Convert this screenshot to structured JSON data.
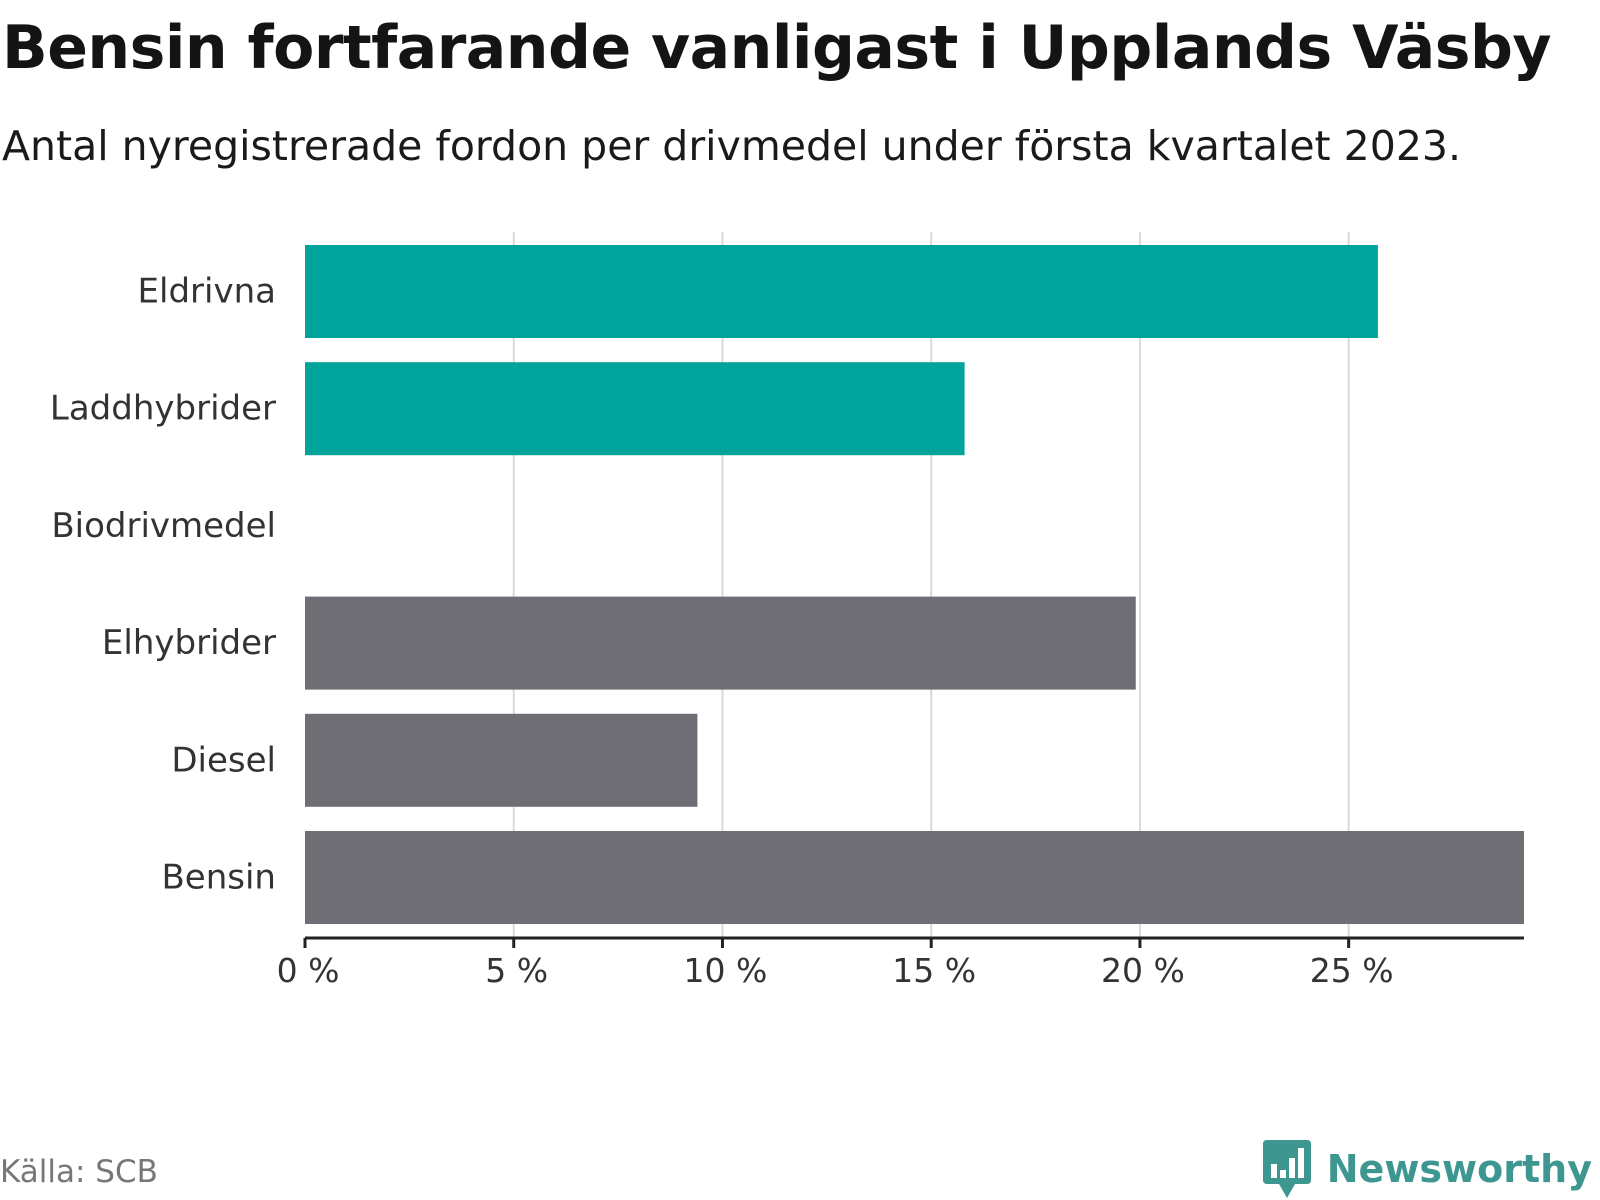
{
  "title": "Bensin fortfarande vanligast i Upplands Väsby",
  "subtitle": "Antal nyregistrerade fordon per drivmedel under första kvartalet 2023.",
  "source": "Källa: SCB",
  "brand": "Newsworthy",
  "colors": {
    "highlight": "#00a49a",
    "base": "#6e6e74",
    "grid": "#d9d9d9",
    "axis": "#222222",
    "brand": "#3d9690"
  },
  "chart_data": {
    "type": "bar",
    "orientation": "horizontal",
    "title": "Bensin fortfarande vanligast i Upplands Väsby",
    "subtitle": "Antal nyregistrerade fordon per drivmedel under första kvartalet 2023.",
    "xlabel": "",
    "ylabel": "",
    "categories": [
      "Eldrivna",
      "Laddhybrider",
      "Biodrivmedel",
      "Elhybrider",
      "Diesel",
      "Bensin"
    ],
    "values": [
      25.7,
      15.8,
      0,
      19.9,
      9.4,
      29.2
    ],
    "unit": "%",
    "highlighted": [
      true,
      true,
      false,
      false,
      false,
      false
    ],
    "xlim": [
      0,
      29.2
    ],
    "ticks": [
      0,
      5,
      10,
      15,
      20,
      25
    ],
    "tick_labels": [
      "0 %",
      "5 %",
      "10 %",
      "15 %",
      "20 %",
      "25 %"
    ],
    "grid": true,
    "legend": "none"
  }
}
